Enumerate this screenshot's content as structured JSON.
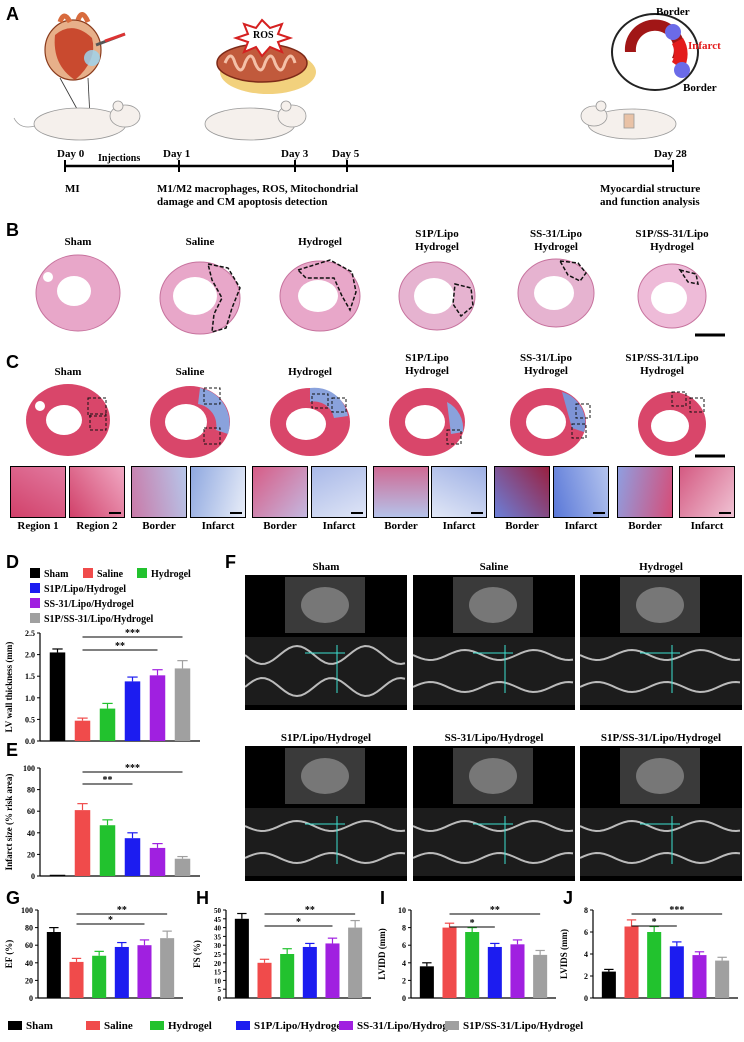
{
  "panels": {
    "A": "A",
    "B": "B",
    "C": "C",
    "D": "D",
    "E": "E",
    "F": "F",
    "G": "G",
    "H": "H",
    "I": "I",
    "J": "J"
  },
  "timeline": {
    "day0": "Day 0",
    "injections": "Injections",
    "day1": "Day 1",
    "day3": "Day 3",
    "day5": "Day 5",
    "day28": "Day 28",
    "mi": "MI",
    "detection_line1": "M1/M2 macrophages, ROS, Mitochondrial",
    "detection_line2": "damage and CM apoptosis detection",
    "analysis_line1": "Myocardial structure",
    "analysis_line2": "and function analysis",
    "ros": "ROS",
    "border_top": "Border",
    "infarct": "Infarct",
    "border_bottom": "Border"
  },
  "groups_b": [
    {
      "l1": "Sham",
      "l2": ""
    },
    {
      "l1": "Saline",
      "l2": ""
    },
    {
      "l1": "Hydrogel",
      "l2": ""
    },
    {
      "l1": "S1P/Lipo",
      "l2": "Hydrogel"
    },
    {
      "l1": "SS-31/Lipo",
      "l2": "Hydrogel"
    },
    {
      "l1": "S1P/SS-31/Lipo",
      "l2": "Hydrogel"
    }
  ],
  "insets_c": [
    "Region 1",
    "Region 2",
    "Border",
    "Infarct",
    "Border",
    "Infarct",
    "Border",
    "Infarct",
    "Border",
    "Infarct",
    "Border",
    "Infarct"
  ],
  "legend_d": [
    "Sham",
    "Saline",
    "Hydrogel",
    "S1P/Lipo/Hydrogel",
    "SS-31/Lipo/Hydrogel",
    "S1P/SS-31/Lipo/Hydrogel"
  ],
  "legend_bottom": [
    "Sham",
    "Saline",
    "Hydrogel",
    "S1P/Lipo/Hydrogel",
    "SS-31/Lipo/Hydrogel",
    "S1P/SS-31/Lipo/Hydrogel"
  ],
  "echo_titles": [
    "Sham",
    "Saline",
    "Hydrogel",
    "S1P/Lipo/Hydrogel",
    "SS-31/Lipo/Hydrogel",
    "S1P/SS-31/Lipo/Hydrogel"
  ],
  "colors": {
    "sham": "#000000",
    "saline": "#f04b4b",
    "hydrogel": "#22c22e",
    "s1p": "#1c1cf0",
    "ss31": "#a020e0",
    "combo": "#a0a0a0"
  },
  "chart_data": [
    {
      "id": "D",
      "type": "bar",
      "ylabel": "LV wall thickness (mm)",
      "ylim": [
        0,
        2.5
      ],
      "yticks": [
        "0.0",
        "0.5",
        "1.0",
        "1.5",
        "2.0",
        "2.5"
      ],
      "values": [
        2.05,
        0.47,
        0.75,
        1.38,
        1.52,
        1.68
      ],
      "errors": [
        0.08,
        0.06,
        0.12,
        0.1,
        0.13,
        0.18
      ],
      "sig": [
        {
          "from": 1,
          "to": 5,
          "label": "***"
        },
        {
          "from": 1,
          "to": 4,
          "label": "**"
        }
      ]
    },
    {
      "id": "E",
      "type": "bar",
      "ylabel": "Infarct size (% risk area)",
      "ylim": [
        0,
        100
      ],
      "yticks": [
        "0",
        "20",
        "40",
        "60",
        "80",
        "100"
      ],
      "values": [
        0,
        61,
        47,
        35,
        26,
        16
      ],
      "errors": [
        0,
        6,
        5,
        5,
        4,
        2
      ],
      "sig": [
        {
          "from": 1,
          "to": 5,
          "label": "***"
        },
        {
          "from": 1,
          "to": 3,
          "label": "**"
        }
      ]
    },
    {
      "id": "G",
      "type": "bar",
      "ylabel": "EF (%)",
      "ylim": [
        0,
        100
      ],
      "yticks": [
        "0",
        "20",
        "40",
        "60",
        "80",
        "100"
      ],
      "values": [
        75,
        41,
        48,
        58,
        60,
        68
      ],
      "errors": [
        5,
        4,
        5,
        5,
        6,
        8
      ],
      "sig": [
        {
          "from": 1,
          "to": 5,
          "label": "**"
        },
        {
          "from": 1,
          "to": 4,
          "label": "*"
        }
      ]
    },
    {
      "id": "H",
      "type": "bar",
      "ylabel": "FS (%)",
      "ylim": [
        0,
        50
      ],
      "yticks": [
        "0",
        "5",
        "10",
        "15",
        "20",
        "25",
        "30",
        "35",
        "40",
        "45",
        "50"
      ],
      "values": [
        45,
        20,
        25,
        29,
        31,
        40
      ],
      "errors": [
        3,
        2,
        3,
        2,
        3,
        4
      ],
      "sig": [
        {
          "from": 1,
          "to": 5,
          "label": "**"
        },
        {
          "from": 1,
          "to": 4,
          "label": "*"
        }
      ]
    },
    {
      "id": "I",
      "type": "bar",
      "ylabel": "LVIDD (mm)",
      "ylim": [
        0,
        10
      ],
      "yticks": [
        "0",
        "2",
        "4",
        "6",
        "8",
        "10"
      ],
      "values": [
        3.6,
        8.0,
        7.5,
        5.8,
        6.1,
        4.9
      ],
      "errors": [
        0.4,
        0.5,
        0.5,
        0.4,
        0.5,
        0.5
      ],
      "sig": [
        {
          "from": 1,
          "to": 5,
          "label": "**"
        },
        {
          "from": 1,
          "to": 3,
          "label": "*"
        }
      ]
    },
    {
      "id": "J",
      "type": "bar",
      "ylabel": "LVIDS (mm)",
      "ylim": [
        0,
        8
      ],
      "yticks": [
        "0",
        "2",
        "4",
        "6",
        "8"
      ],
      "values": [
        2.4,
        6.5,
        6.0,
        4.7,
        3.9,
        3.4
      ],
      "errors": [
        0.2,
        0.6,
        0.5,
        0.4,
        0.3,
        0.3
      ],
      "sig": [
        {
          "from": 1,
          "to": 5,
          "label": "***"
        },
        {
          "from": 1,
          "to": 3,
          "label": "*"
        }
      ]
    }
  ]
}
